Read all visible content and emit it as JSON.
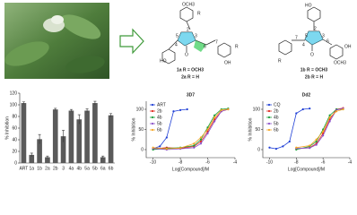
{
  "structures": [
    {
      "labels": [
        "OCH3",
        "HO",
        "OH",
        "O",
        "R",
        "R",
        "5",
        "3",
        "2",
        "4",
        "6",
        "7"
      ],
      "compounds": [
        "1a R = OCH3",
        "2a R = H"
      ]
    },
    {
      "labels": [
        "HO",
        "OCH3",
        "O",
        "R",
        "OH",
        "5",
        "3",
        "2",
        "4",
        "6",
        "7"
      ],
      "compounds": [
        "1b R = OCH3",
        "2b R = H"
      ]
    }
  ],
  "chart_data": [
    {
      "type": "bar",
      "ylabel": "% Inhibition",
      "categories": [
        "ART",
        "1a",
        "1b",
        "2a",
        "2b",
        "3",
        "4a",
        "4b",
        "5a",
        "5b",
        "6a",
        "6b"
      ],
      "values": [
        103,
        14,
        41,
        10,
        92,
        46,
        90,
        75,
        90,
        103,
        10,
        82
      ],
      "errors": [
        2,
        3,
        8,
        2,
        2,
        10,
        2,
        8,
        3,
        3,
        2,
        3
      ],
      "color": "#5a5a5a",
      "ylim": [
        0,
        120
      ],
      "yticks": [
        0,
        20,
        40,
        60,
        80,
        100,
        120
      ]
    },
    {
      "type": "line",
      "title": "3D7",
      "ylabel": "% Inhibition",
      "xlabel": "Log[Compound]/M",
      "xlim": [
        -10.5,
        -4
      ],
      "ylim": [
        -20,
        120
      ],
      "xticks": [
        -10,
        -8,
        -6,
        -4
      ],
      "yticks": [
        0,
        50,
        100
      ],
      "legend": "top-left",
      "series": [
        {
          "name": "ART",
          "color": "#1f3fd6",
          "x": [
            -10,
            -9.5,
            -9,
            -8.5,
            -8,
            -7.5
          ],
          "values": [
            3,
            8,
            30,
            95,
            98,
            100
          ]
        },
        {
          "name": "2b",
          "color": "#e0281e",
          "x": [
            -10,
            -9,
            -8,
            -7,
            -6.5,
            -6,
            -5.5,
            -5,
            -4.5
          ],
          "values": [
            2,
            5,
            3,
            8,
            20,
            45,
            75,
            95,
            100
          ]
        },
        {
          "name": "4b",
          "color": "#1a9e3a",
          "x": [
            -10,
            -9,
            -8,
            -7,
            -6.5,
            -6,
            -5.5,
            -5,
            -4.5
          ],
          "values": [
            0,
            3,
            5,
            10,
            25,
            55,
            85,
            100,
            102
          ]
        },
        {
          "name": "5b",
          "color": "#8a50c8",
          "x": [
            -10,
            -9,
            -8,
            -7,
            -6.5,
            -6,
            -5.5,
            -5,
            -4.5
          ],
          "values": [
            3,
            0,
            2,
            5,
            15,
            40,
            70,
            95,
            100
          ]
        },
        {
          "name": "6b",
          "color": "#f5a623",
          "x": [
            -10,
            -9,
            -8,
            -7,
            -6.5,
            -6,
            -5.5,
            -5,
            -4.5
          ],
          "values": [
            5,
            2,
            4,
            15,
            30,
            50,
            80,
            98,
            100
          ]
        }
      ]
    },
    {
      "type": "line",
      "title": "Dd2",
      "ylabel": "% Inhibition",
      "xlabel": "Log[Compound]/M",
      "xlim": [
        -10.5,
        -4
      ],
      "ylim": [
        -20,
        120
      ],
      "xticks": [
        -10,
        -8,
        -6,
        -4
      ],
      "yticks": [
        0,
        50,
        100
      ],
      "legend": "top-left",
      "series": [
        {
          "name": "CQ",
          "color": "#1f3fd6",
          "x": [
            -10,
            -9.5,
            -9,
            -8.5,
            -8,
            -7.5,
            -7
          ],
          "values": [
            5,
            2,
            8,
            20,
            90,
            100,
            102
          ]
        },
        {
          "name": "2b",
          "color": "#e0281e",
          "x": [
            -8,
            -7,
            -6.5,
            -6,
            -5.5,
            -5,
            -4.5
          ],
          "values": [
            2,
            5,
            15,
            40,
            75,
            100,
            103
          ]
        },
        {
          "name": "4b",
          "color": "#1a9e3a",
          "x": [
            -8,
            -7,
            -6.5,
            -6,
            -5.5,
            -5,
            -4.5
          ],
          "values": [
            0,
            8,
            20,
            50,
            85,
            100,
            100
          ]
        },
        {
          "name": "5b",
          "color": "#8a50c8",
          "x": [
            -8,
            -7,
            -6.5,
            -6,
            -5.5,
            -5,
            -4.5
          ],
          "values": [
            3,
            4,
            12,
            35,
            70,
            98,
            102
          ]
        },
        {
          "name": "6b",
          "color": "#f5a623",
          "x": [
            -8,
            -7,
            -6.5,
            -6,
            -5.5,
            -5,
            -4.5
          ],
          "values": [
            5,
            10,
            25,
            45,
            80,
            95,
            100
          ]
        }
      ]
    }
  ]
}
